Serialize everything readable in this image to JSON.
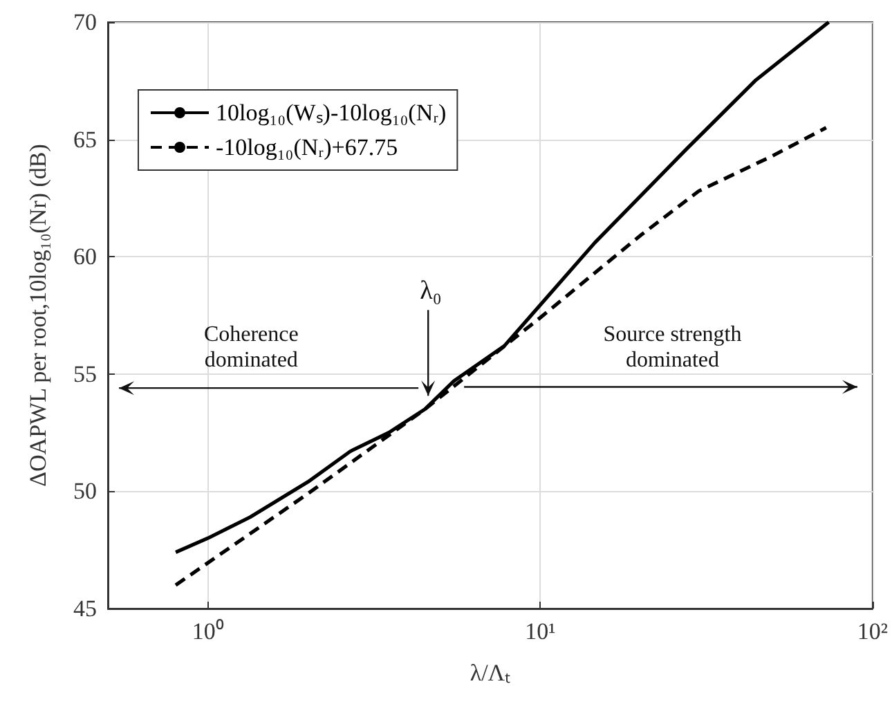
{
  "chart_data": {
    "type": "line",
    "xlabel": "λ/Λₜ",
    "ylabel": "ΔOAPWL per root,10log₁₀(Nr) (dB)",
    "log": "x",
    "xlim": [
      0.5,
      100
    ],
    "xticks": [
      {
        "value": 1,
        "label": "10⁰"
      },
      {
        "value": 10,
        "label": "10¹"
      },
      {
        "value": 100,
        "label": "10²"
      }
    ],
    "ylim": [
      45,
      70
    ],
    "yticks": [
      45,
      50,
      55,
      60,
      65,
      70
    ],
    "grid": true,
    "legend": "top left",
    "marker": "none",
    "series": [
      {
        "name": "10log₁₀(Wₛ)-10log₁₀(Nᵣ)",
        "color": "#000000",
        "line_style": "solid",
        "x": [
          0.8,
          1.0,
          1.34,
          2.0,
          2.68,
          3.5,
          4.5,
          5.5,
          7.8,
          10.3,
          14.6,
          27.6,
          44.3,
          73.8
        ],
        "values": [
          47.4,
          48.0,
          48.9,
          50.4,
          51.7,
          52.5,
          53.5,
          54.7,
          56.2,
          58.15,
          60.6,
          64.6,
          67.5,
          70.0
        ]
      },
      {
        "name": "-10log₁₀(Nᵣ)+67.75",
        "color": "#000000",
        "line_style": "dashed",
        "x": [
          0.8,
          2.0,
          4.5,
          10,
          20,
          30,
          50,
          72.5
        ],
        "values": [
          46.0,
          49.9,
          53.5,
          57.4,
          60.9,
          62.8,
          64.3,
          65.5
        ]
      }
    ],
    "annotations": [
      {
        "text": "λ₀",
        "x": 4.6,
        "y": 53.6
      },
      "Coherence\ndominated",
      "Source strength\ndominated"
    ]
  }
}
